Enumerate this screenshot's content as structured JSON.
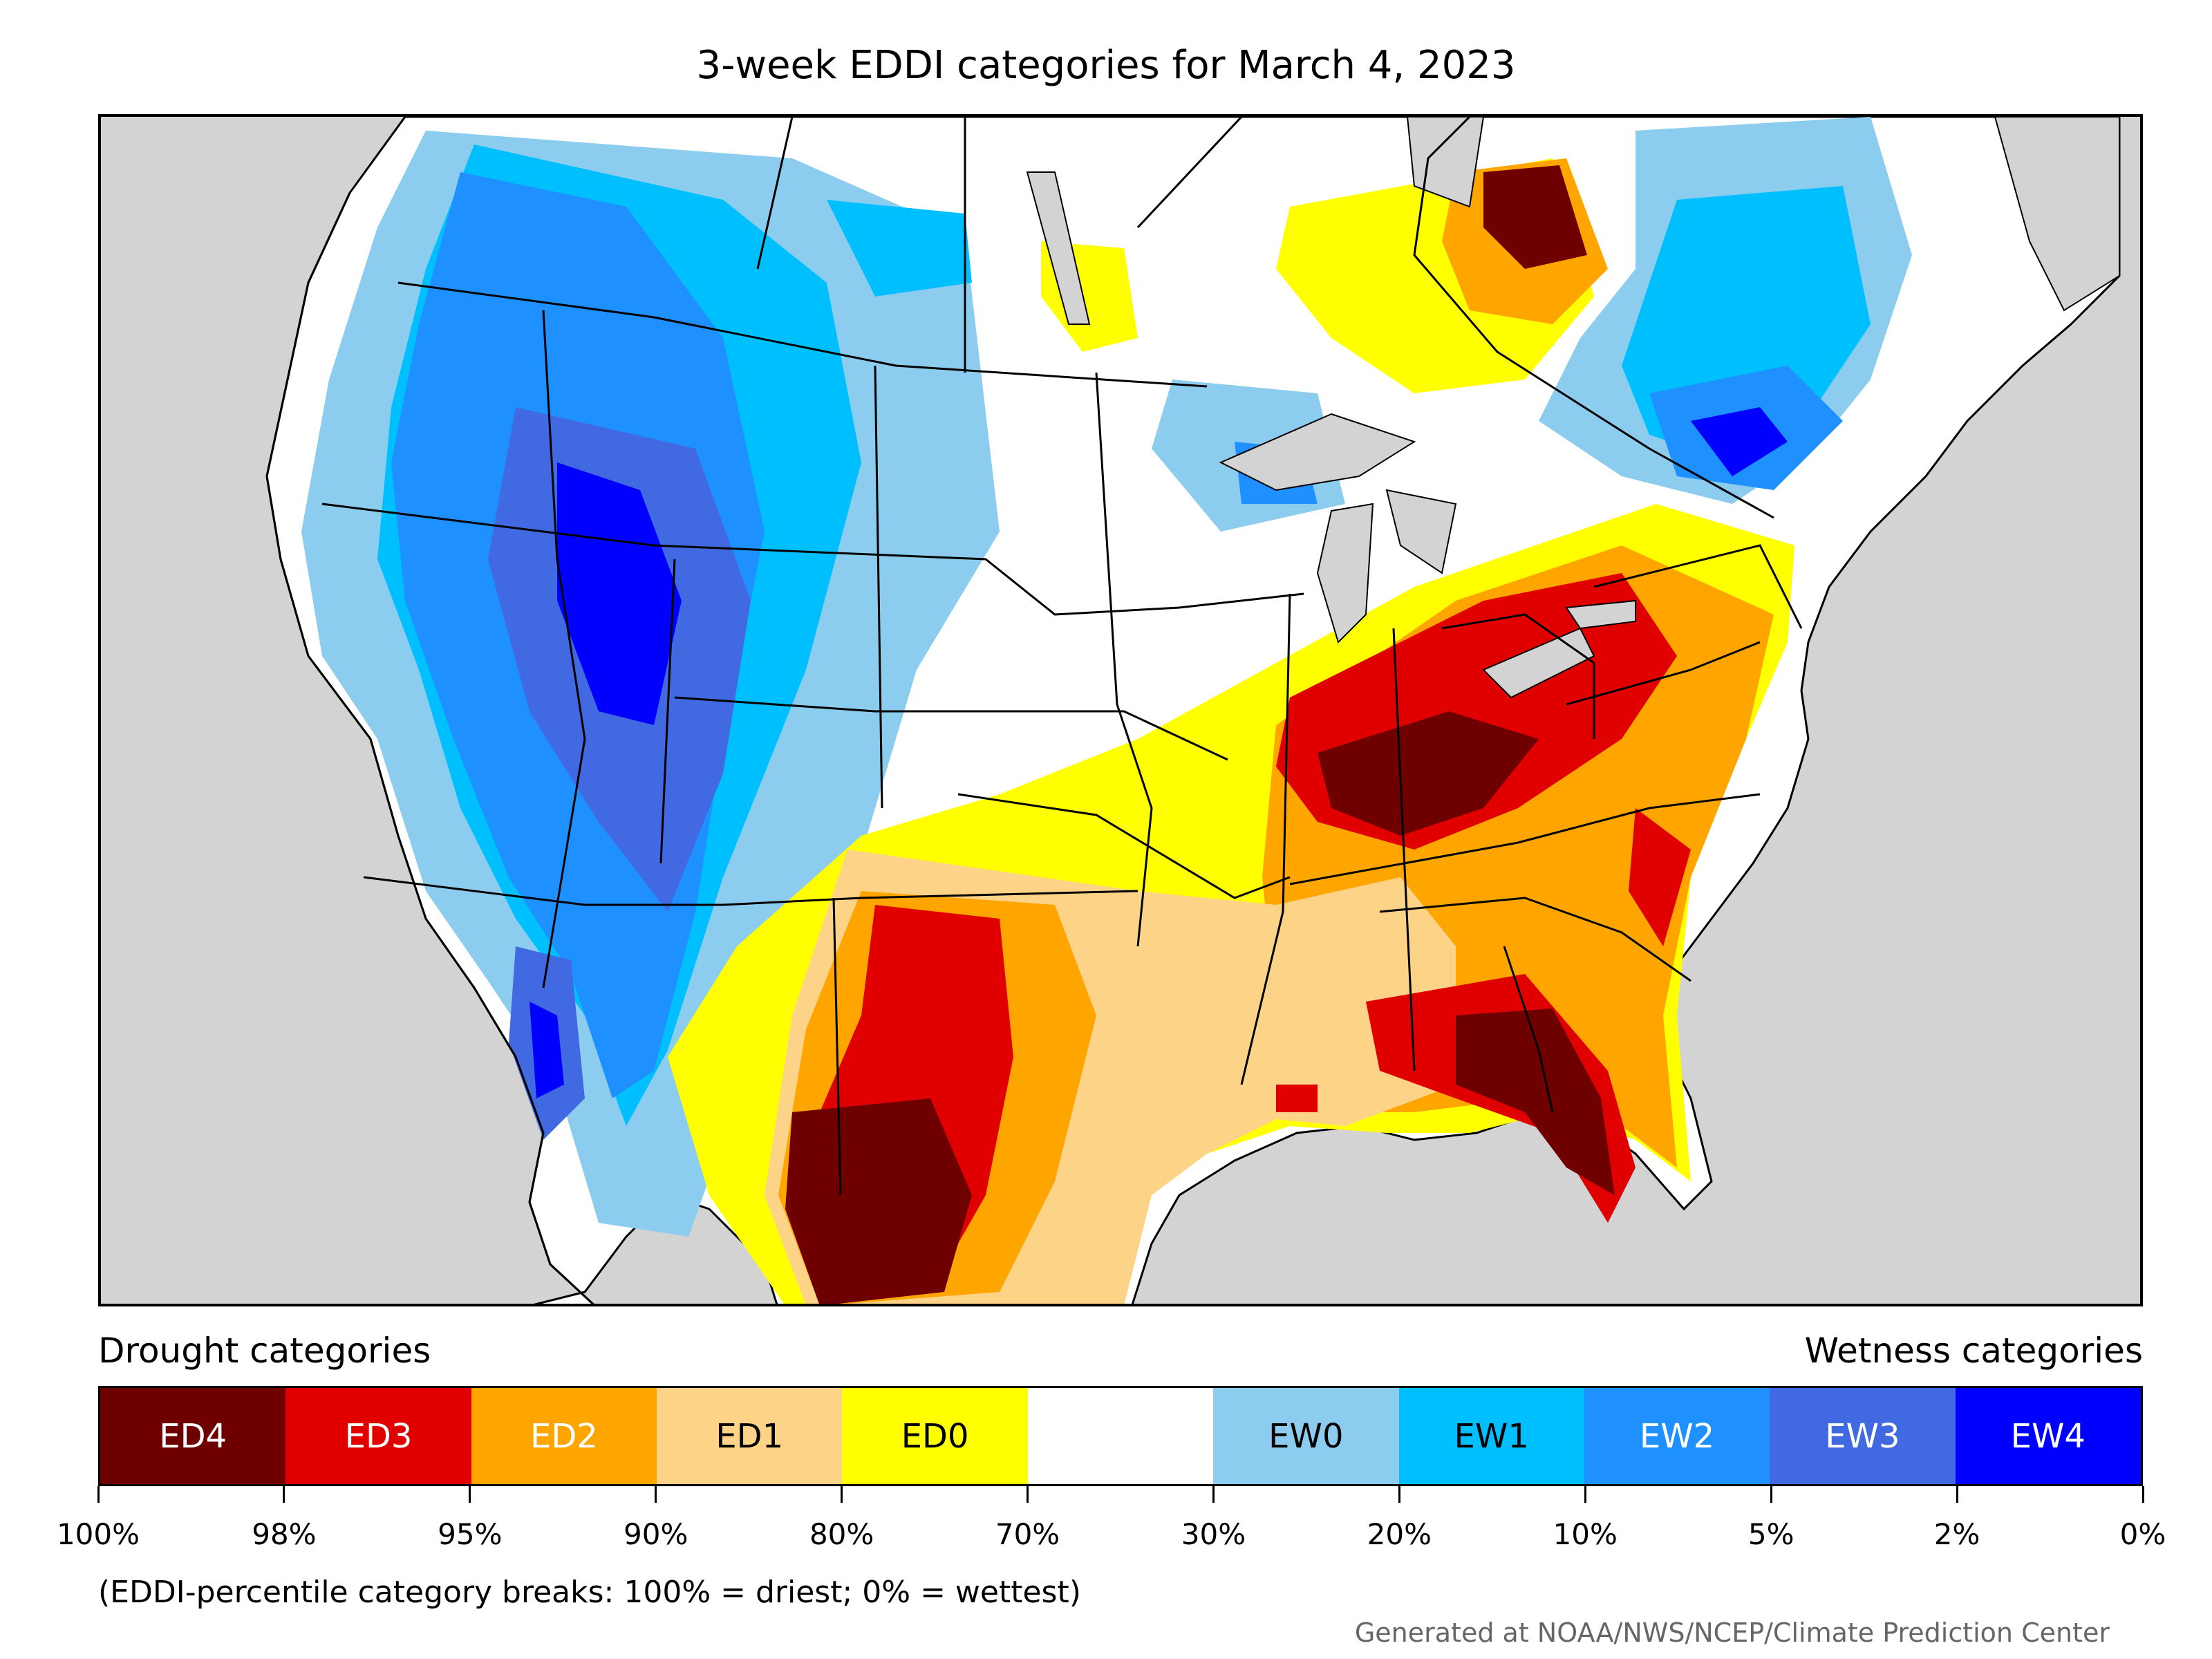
{
  "title": "3-week EDDI categories for March 4, 2023",
  "legend": {
    "drought_heading": "Drought categories",
    "wetness_heading": "Wetness categories",
    "categories": [
      {
        "label": "ED4",
        "color": "#6e0000",
        "text_color": "#ffffff"
      },
      {
        "label": "ED3",
        "color": "#e00000",
        "text_color": "#ffffff"
      },
      {
        "label": "ED2",
        "color": "#ffa500",
        "text_color": "#ffffff"
      },
      {
        "label": "ED1",
        "color": "#fdd388",
        "text_color": "#000000"
      },
      {
        "label": "ED0",
        "color": "#ffff00",
        "text_color": "#000000"
      },
      {
        "label": "",
        "color": "#ffffff",
        "text_color": "#000000"
      },
      {
        "label": "EW0",
        "color": "#8ccdef",
        "text_color": "#000000"
      },
      {
        "label": "EW1",
        "color": "#00bfff",
        "text_color": "#000000"
      },
      {
        "label": "EW2",
        "color": "#1e90ff",
        "text_color": "#ffffff"
      },
      {
        "label": "EW3",
        "color": "#4169e1",
        "text_color": "#ffffff"
      },
      {
        "label": "EW4",
        "color": "#0000ff",
        "text_color": "#ffffff"
      }
    ],
    "breaks": [
      "100%",
      "98%",
      "95%",
      "90%",
      "80%",
      "70%",
      "30%",
      "20%",
      "10%",
      "5%",
      "2%",
      "0%"
    ]
  },
  "note": "(EDDI-percentile category breaks: 100% = driest; 0% = wettest)",
  "credit": "Generated at NOAA/NWS/NCEP/Climate Prediction Center",
  "map": {
    "background_color": "#d3d3d3",
    "land_color": "#ffffff",
    "water_color": "#d3d3d3"
  }
}
